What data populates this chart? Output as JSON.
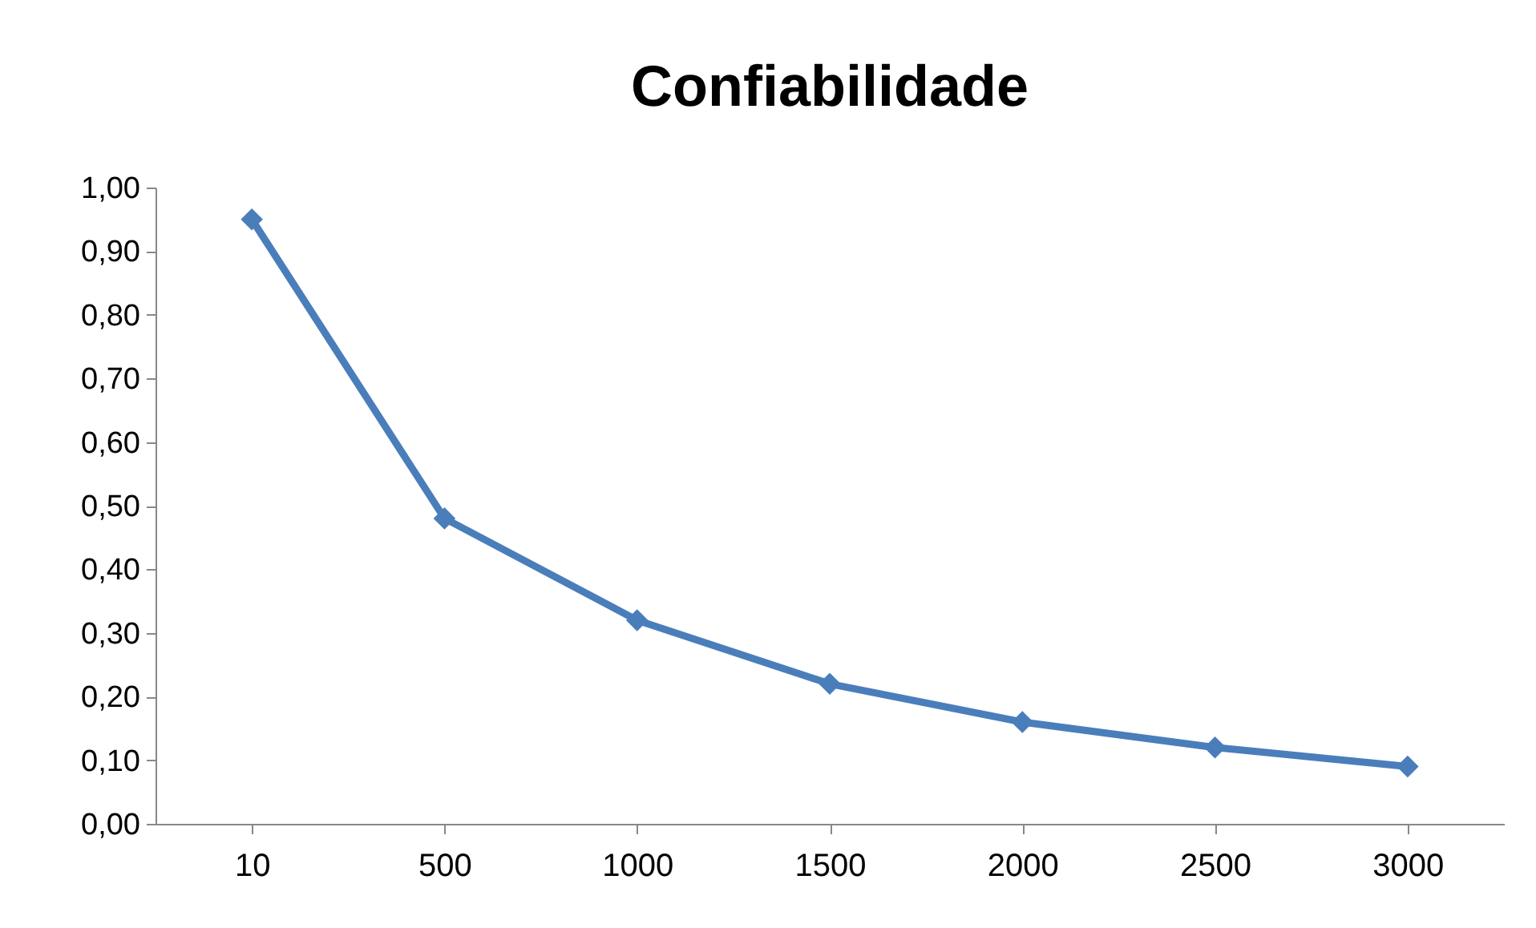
{
  "chart_data": {
    "type": "line",
    "title": "Confiabilidade",
    "categories": [
      "10",
      "500",
      "1000",
      "1500",
      "2000",
      "2500",
      "3000"
    ],
    "series": [
      {
        "color": "#4a7ebb",
        "values": [
          0.95,
          0.48,
          0.32,
          0.22,
          0.16,
          0.12,
          0.09
        ]
      }
    ],
    "ylim": [
      0,
      1
    ],
    "yticks": [
      {
        "value": 0,
        "label": "0,00"
      },
      {
        "value": 0.1,
        "label": "0,10"
      },
      {
        "value": 0.2,
        "label": "0,20"
      },
      {
        "value": 0.3,
        "label": "0,30"
      },
      {
        "value": 0.4,
        "label": "0,40"
      },
      {
        "value": 0.5,
        "label": "0,50"
      },
      {
        "value": 0.6,
        "label": "0,60"
      },
      {
        "value": 0.7,
        "label": "0,70"
      },
      {
        "value": 0.8,
        "label": "0,80"
      },
      {
        "value": 0.9,
        "label": "0,90"
      },
      {
        "value": 1,
        "label": "1,00"
      }
    ],
    "grid": false,
    "marker": "diamond",
    "line_style": "solid"
  }
}
